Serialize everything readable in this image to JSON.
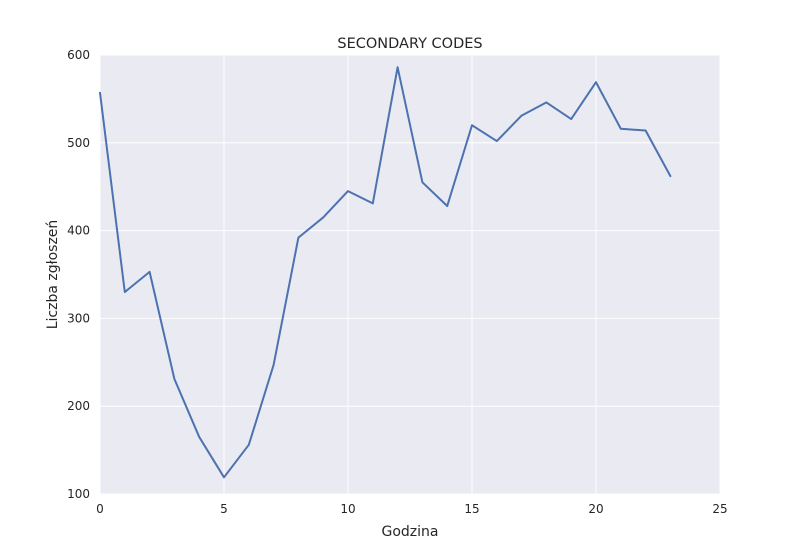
{
  "chart_data": {
    "type": "line",
    "title": "SECONDARY CODES",
    "xlabel": "Godzina",
    "ylabel": "Liczba zgłoszeń",
    "xlim": [
      0,
      25
    ],
    "ylim": [
      100,
      600
    ],
    "xticks": [
      0,
      5,
      10,
      15,
      20,
      25
    ],
    "yticks": [
      100,
      200,
      300,
      400,
      500,
      600
    ],
    "grid": true,
    "series": [
      {
        "x": [
          0,
          1,
          2,
          3,
          4,
          5,
          6,
          7,
          8,
          9,
          10,
          11,
          12,
          13,
          14,
          15,
          16,
          17,
          18,
          19,
          20,
          21,
          22,
          23
        ],
        "values": [
          557,
          330,
          353,
          231,
          165,
          119,
          156,
          247,
          392,
          415,
          445,
          431,
          586,
          455,
          428,
          520,
          502,
          531,
          546,
          527,
          569,
          516,
          514,
          462
        ],
        "color": "#4c72b0"
      }
    ],
    "colors": {
      "plot_background": "#eaeaf2",
      "grid": "#ffffff",
      "line": "#4c72b0"
    }
  }
}
